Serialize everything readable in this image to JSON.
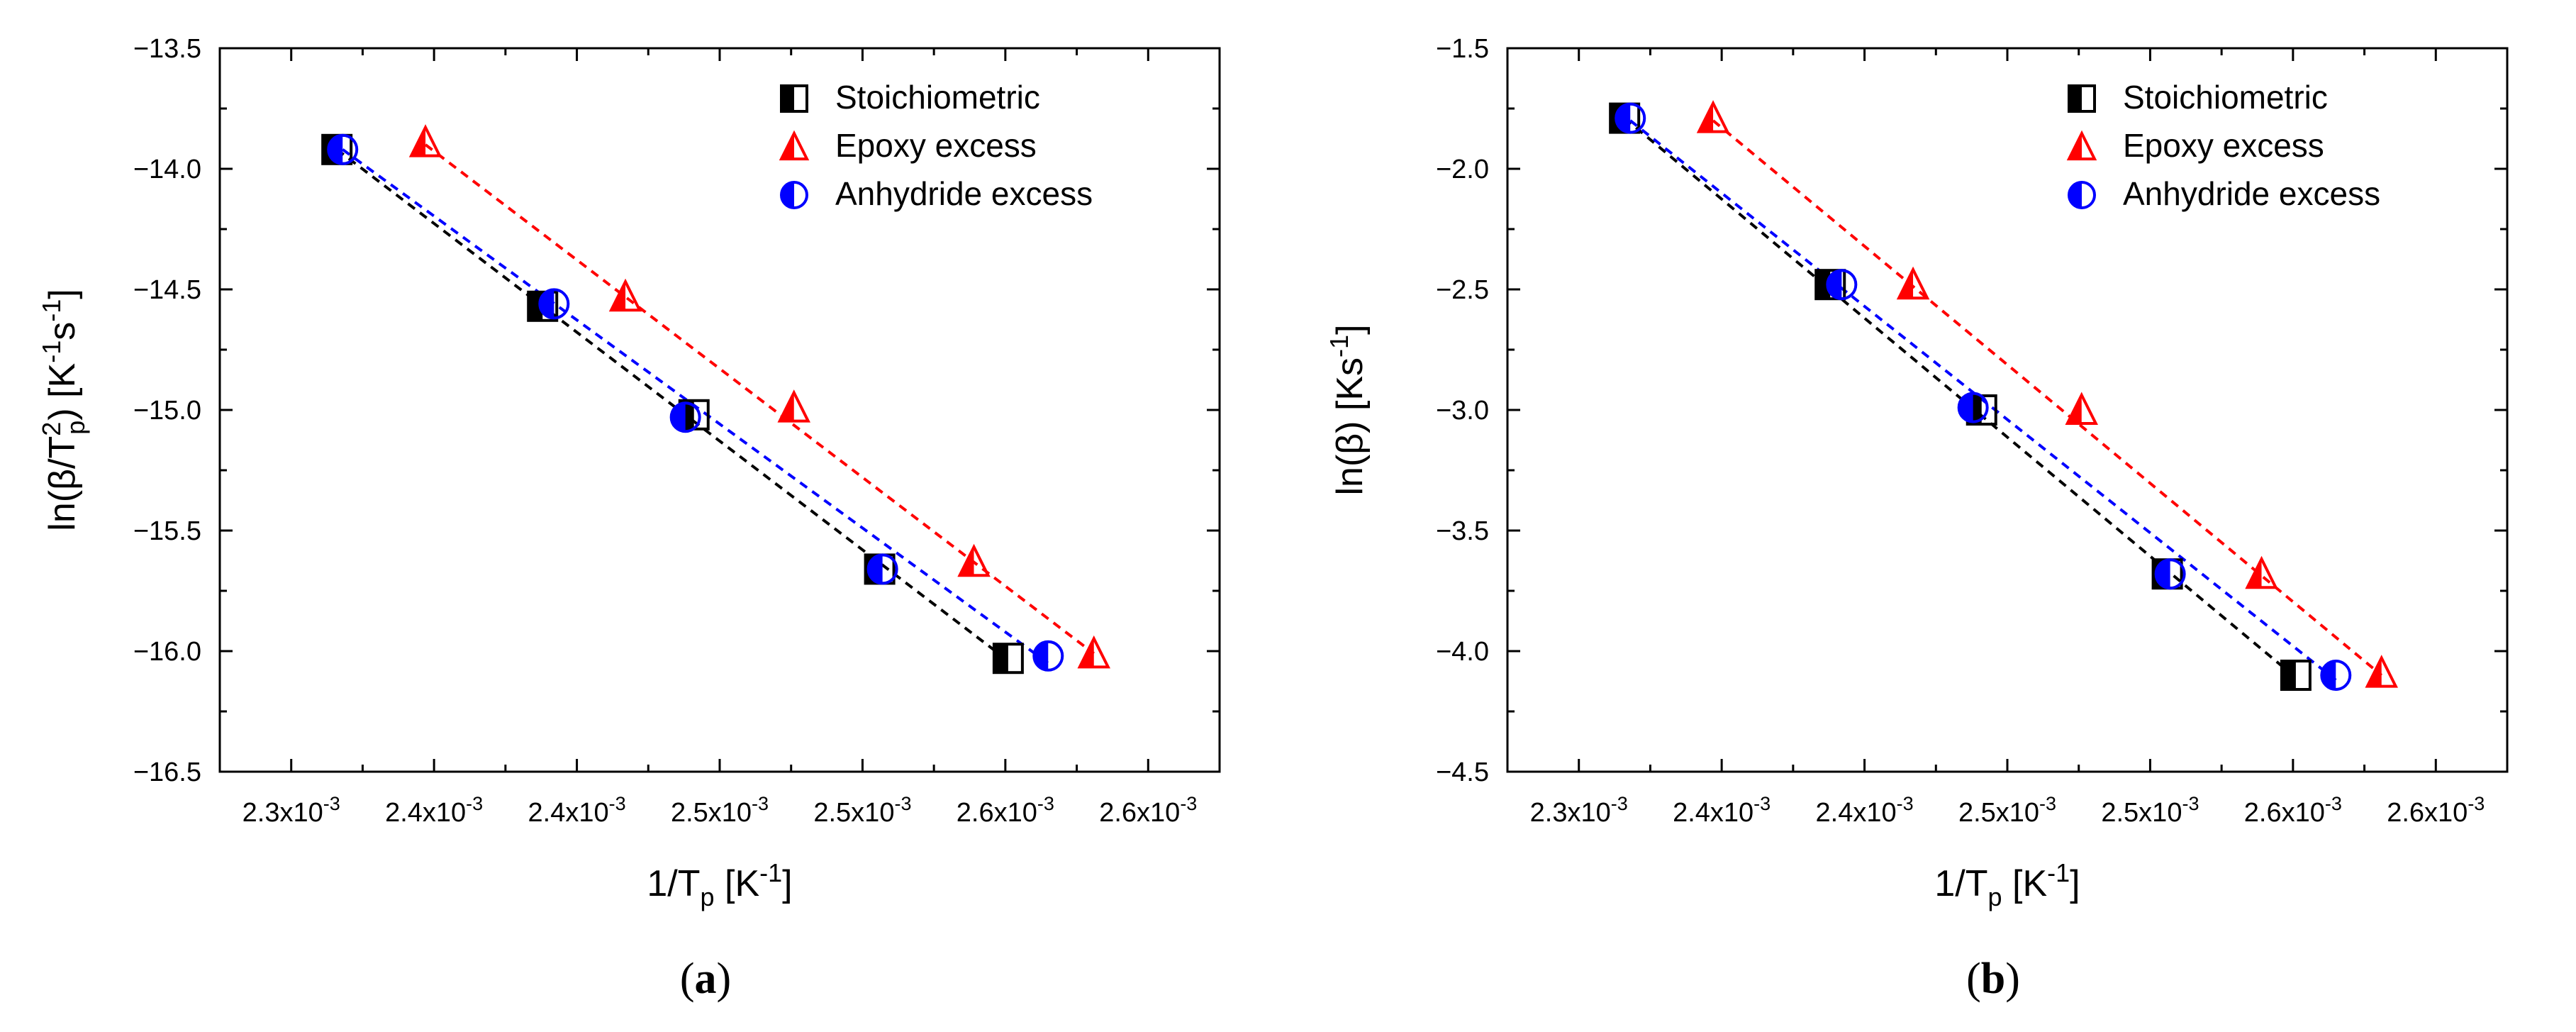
{
  "chart_data": [
    {
      "type": "scatter",
      "panel_label": "(a)",
      "xlabel": "1/T",
      "xlabel_sub": "p",
      "xlabel_unit": "[K",
      "xlabel_unit_sup": "-1",
      "xlabel_unit_close": "]",
      "ylabel": "ln(β/T",
      "ylabel_sup": "2",
      "ylabel_sub": "p",
      "ylabel_close": ") [K",
      "ylabel_sup2": "-1",
      "ylabel_mid": "s",
      "ylabel_sup3": "-1",
      "ylabel_end": "]",
      "xlim": [
        0.002275,
        0.002625
      ],
      "ylim": [
        -16.5,
        -13.5
      ],
      "x_ticks": [
        0.0023,
        0.00235,
        0.0024,
        0.00245,
        0.0025,
        0.00255,
        0.0026
      ],
      "x_tick_labels": [
        "2.3x10",
        "2.4x10",
        "2.4x10",
        "2.5x10",
        "2.5x10",
        "2.6x10",
        "2.6x10"
      ],
      "x_tick_exp": "-3",
      "y_ticks": [
        -16.5,
        -16.0,
        -15.5,
        -15.0,
        -14.5,
        -14.0,
        -13.5
      ],
      "y_tick_labels": [
        "-16.5",
        "-16.0",
        "-15.5",
        "-15.0",
        "-14.5",
        "-14.0",
        "-13.5"
      ],
      "series": [
        {
          "name": "Stoichiometric",
          "color": "#000000",
          "marker": "square",
          "x": [
            0.002316,
            0.002388,
            0.002441,
            0.002506,
            0.002551
          ],
          "y": [
            -13.92,
            -14.57,
            -15.02,
            -15.66,
            -16.03
          ],
          "fit_x": [
            0.002316,
            0.002551
          ],
          "fit_y": [
            -13.92,
            -16.04
          ]
        },
        {
          "name": "Epoxy excess",
          "color": "#ff0000",
          "marker": "triangle",
          "x": [
            0.002347,
            0.002417,
            0.002476,
            0.002539,
            0.002581
          ],
          "y": [
            -13.89,
            -14.53,
            -14.99,
            -15.63,
            -16.01
          ],
          "fit_x": [
            0.002347,
            0.002581
          ],
          "fit_y": [
            -13.9,
            -16.01
          ]
        },
        {
          "name": "Anhydride excess",
          "color": "#0000ff",
          "marker": "circle",
          "x": [
            0.002318,
            0.002392,
            0.002438,
            0.002507,
            0.002565
          ],
          "y": [
            -13.92,
            -14.56,
            -15.03,
            -15.66,
            -16.02
          ],
          "fit_x": [
            0.002318,
            0.002565
          ],
          "fit_y": [
            -13.92,
            -16.05
          ]
        }
      ]
    },
    {
      "type": "scatter",
      "panel_label": "(b)",
      "xlabel": "1/T",
      "xlabel_sub": "p",
      "xlabel_unit": "[K",
      "xlabel_unit_sup": "-1",
      "xlabel_unit_close": "]",
      "ylabel": "ln(β) [Ks",
      "ylabel_sup": "-1",
      "ylabel_end": "]",
      "xlim": [
        0.002275,
        0.002625
      ],
      "ylim": [
        -4.5,
        -1.5
      ],
      "x_ticks": [
        0.0023,
        0.00235,
        0.0024,
        0.00245,
        0.0025,
        0.00255,
        0.0026
      ],
      "x_tick_labels": [
        "2.3x10",
        "2.4x10",
        "2.4x10",
        "2.5x10",
        "2.5x10",
        "2.6x10",
        "2.6x10"
      ],
      "x_tick_exp": "-3",
      "y_ticks": [
        -4.5,
        -4.0,
        -3.5,
        -3.0,
        -2.5,
        -2.0,
        -1.5
      ],
      "y_tick_labels": [
        "-4.5",
        "-4.0",
        "-3.5",
        "-3.0",
        "-2.5",
        "-2.0",
        "-1.5"
      ],
      "series": [
        {
          "name": "Stoichiometric",
          "color": "#000000",
          "marker": "square",
          "x": [
            0.002316,
            0.002388,
            0.002441,
            0.002506,
            0.002551
          ],
          "y": [
            -1.79,
            -2.48,
            -3.0,
            -3.68,
            -4.1
          ],
          "fit_x": [
            0.002316,
            0.002551
          ],
          "fit_y": [
            -1.79,
            -4.11
          ]
        },
        {
          "name": "Epoxy excess",
          "color": "#ff0000",
          "marker": "triangle",
          "x": [
            0.002347,
            0.002417,
            0.002476,
            0.002539,
            0.002581
          ],
          "y": [
            -1.79,
            -2.48,
            -3.0,
            -3.68,
            -4.09
          ],
          "fit_x": [
            0.002347,
            0.002581
          ],
          "fit_y": [
            -1.8,
            -4.1
          ]
        },
        {
          "name": "Anhydride excess",
          "color": "#0000ff",
          "marker": "circle",
          "x": [
            0.002318,
            0.002392,
            0.002438,
            0.002507,
            0.002565
          ],
          "y": [
            -1.79,
            -2.48,
            -2.99,
            -3.68,
            -4.1
          ],
          "fit_x": [
            0.002318,
            0.002565
          ],
          "fit_y": [
            -1.8,
            -4.12
          ]
        }
      ]
    }
  ]
}
